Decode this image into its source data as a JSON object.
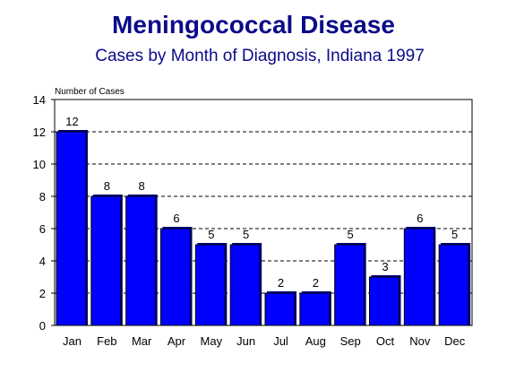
{
  "chart_data": {
    "type": "bar",
    "title": "Meningococcal Disease",
    "subtitle": "Cases by Month of Diagnosis, Indiana 1997",
    "ylabel": "Number of Cases",
    "xlabel": "",
    "categories": [
      "Jan",
      "Feb",
      "Mar",
      "Apr",
      "May",
      "Jun",
      "Jul",
      "Aug",
      "Sep",
      "Oct",
      "Nov",
      "Dec"
    ],
    "values": [
      12,
      8,
      8,
      6,
      5,
      5,
      2,
      2,
      5,
      3,
      6,
      5
    ],
    "ylim": [
      0,
      14
    ],
    "yticks": [
      0,
      2,
      4,
      6,
      8,
      10,
      12,
      14
    ],
    "grid": true,
    "bar_color": "#0000ff",
    "title_color": "#0b0b8a"
  }
}
